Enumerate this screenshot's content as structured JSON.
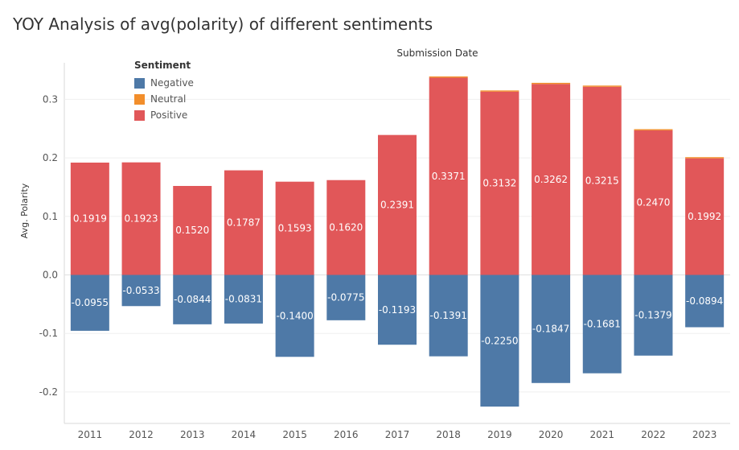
{
  "chart_data": {
    "type": "bar",
    "title": "YOY Analysis of avg(polarity) of different sentiments",
    "column_header": "Submission Date",
    "ylabel": "Avg. Polarity",
    "xlabel": "",
    "ylim": [
      -0.25,
      0.4
    ],
    "yticks": [
      "0.3",
      "0.2",
      "0.1",
      "0.0",
      "-0.1",
      "-0.2"
    ],
    "ytick_values": [
      0.3,
      0.2,
      0.1,
      0.0,
      -0.1,
      -0.2
    ],
    "grid": true,
    "legend_title": "Sentiment",
    "legend_position": "top-left",
    "categories": [
      "2011",
      "2012",
      "2013",
      "2014",
      "2015",
      "2016",
      "2017",
      "2018",
      "2019",
      "2020",
      "2021",
      "2022",
      "2023"
    ],
    "series": [
      {
        "name": "Negative",
        "color": "#4e79a7",
        "values": [
          -0.0955,
          -0.0533,
          -0.0844,
          -0.0831,
          -0.14,
          -0.0775,
          -0.1193,
          -0.1391,
          -0.225,
          -0.1847,
          -0.1681,
          -0.1379,
          -0.0894
        ],
        "labels": [
          "-0.0955",
          "-0.0533",
          "-0.0844",
          "-0.0831",
          "-0.1400",
          "-0.0775",
          "-0.1193",
          "-0.1391",
          "-0.2250",
          "-0.1847",
          "-0.1681",
          "-0.1379",
          "-0.0894"
        ]
      },
      {
        "name": "Neutral",
        "color": "#f28e2b",
        "values": [
          0,
          0,
          0,
          0,
          0,
          0,
          0,
          0.002,
          0.002,
          0.002,
          0.002,
          0.002,
          0.002
        ],
        "labels": []
      },
      {
        "name": "Positive",
        "color": "#e15759",
        "values": [
          0.1919,
          0.1923,
          0.152,
          0.1787,
          0.1593,
          0.162,
          0.2391,
          0.3371,
          0.3132,
          0.3262,
          0.3215,
          0.247,
          0.1992
        ],
        "labels": [
          "0.1919",
          "0.1923",
          "0.1520",
          "0.1787",
          "0.1593",
          "0.1620",
          "0.2391",
          "0.3371",
          "0.3132",
          "0.3262",
          "0.3215",
          "0.2470",
          "0.1992"
        ]
      }
    ]
  }
}
